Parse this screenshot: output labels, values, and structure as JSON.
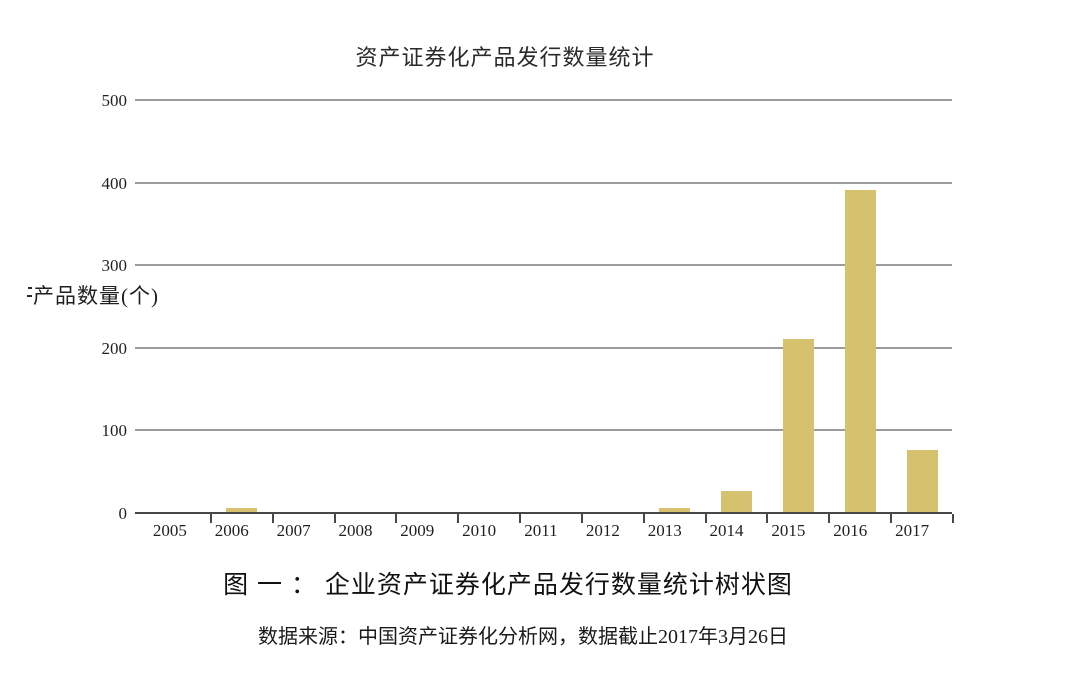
{
  "chart": {
    "title": "资产证券化产品发行数量统计",
    "y_axis_title": "产品数量(个)"
  },
  "chart_data": {
    "type": "bar",
    "title": "资产证券化产品发行数量统计",
    "categories": [
      "2005",
      "2006",
      "2007",
      "2008",
      "2009",
      "2010",
      "2011",
      "2012",
      "2013",
      "2014",
      "2015",
      "2016",
      "2017"
    ],
    "values": [
      0,
      5,
      0,
      0,
      0,
      0,
      0,
      0,
      5,
      25,
      210,
      390,
      75
    ],
    "xlabel": "",
    "ylabel": "产品数量(个)",
    "ylim": [
      0,
      500
    ],
    "ytick_interval": 100,
    "yticks": [
      500,
      400,
      300,
      200,
      100,
      0
    ],
    "grid": true,
    "legend": "none",
    "bar_color": "#d6c26e",
    "gridline_color": "#9b9b9b",
    "axis_color": "#474747"
  },
  "caption": {
    "figure_label": "图 一 ： 企业资产证券化产品发行数量统计树状图"
  },
  "source": {
    "text": "数据来源：中国资产证券化分析网，数据截止2017年3月26日"
  }
}
